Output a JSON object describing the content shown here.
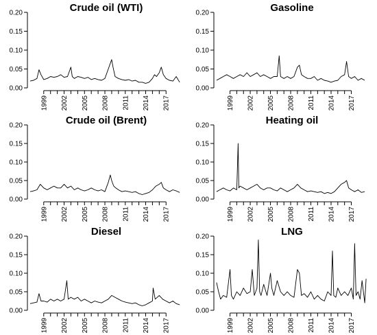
{
  "figure": {
    "panels": [
      {
        "title": "Crude oil (WTI)"
      },
      {
        "title": "Gasoline"
      },
      {
        "title": "Crude oil (Brent)"
      },
      {
        "title": "Heating oil"
      },
      {
        "title": "Diesel"
      },
      {
        "title": "LNG"
      }
    ]
  },
  "chart_data": [
    {
      "type": "line",
      "title": "Crude oil (WTI)",
      "xlabel": "",
      "ylabel": "",
      "xlim": [
        1996.6,
        2019.8
      ],
      "ylim": [
        0,
        0.2
      ],
      "xticks": [
        1999,
        2002,
        2005,
        2008,
        2011,
        2014,
        2017
      ],
      "yticks": [
        0.0,
        0.05,
        0.1,
        0.15,
        0.2
      ],
      "ytick_labels": [
        "0.00",
        "0.05",
        "0.10",
        "0.15",
        "0.20"
      ],
      "series": [
        {
          "x": [
            1997.0,
            1997.5,
            1998.0,
            1998.3,
            1998.6,
            1999.0,
            1999.5,
            2000.0,
            2000.5,
            2001.0,
            2001.5,
            2002.0,
            2002.5,
            2003.0,
            2003.2,
            2003.5,
            2004.0,
            2004.5,
            2005.0,
            2005.5,
            2006.0,
            2006.5,
            2007.0,
            2007.5,
            2008.0,
            2008.5,
            2008.8,
            2009.0,
            2009.2,
            2009.5,
            2010.0,
            2010.5,
            2011.0,
            2011.5,
            2012.0,
            2012.5,
            2013.0,
            2013.5,
            2014.0,
            2014.5,
            2015.0,
            2015.3,
            2015.6,
            2016.0,
            2016.3,
            2016.6,
            2017.0,
            2017.5,
            2018.0,
            2018.5,
            2019.0
          ],
          "y": [
            0.018,
            0.02,
            0.025,
            0.048,
            0.035,
            0.022,
            0.025,
            0.03,
            0.028,
            0.03,
            0.035,
            0.028,
            0.03,
            0.055,
            0.03,
            0.025,
            0.03,
            0.028,
            0.025,
            0.028,
            0.022,
            0.025,
            0.022,
            0.02,
            0.025,
            0.05,
            0.065,
            0.075,
            0.055,
            0.03,
            0.025,
            0.022,
            0.02,
            0.022,
            0.018,
            0.02,
            0.015,
            0.015,
            0.012,
            0.015,
            0.025,
            0.035,
            0.03,
            0.04,
            0.055,
            0.035,
            0.025,
            0.02,
            0.018,
            0.03,
            0.015
          ]
        }
      ]
    },
    {
      "type": "line",
      "title": "Gasoline",
      "xlabel": "",
      "ylabel": "",
      "xlim": [
        1996.6,
        2019.8
      ],
      "ylim": [
        0,
        0.2
      ],
      "xticks": [
        1999,
        2002,
        2005,
        2008,
        2011,
        2014,
        2017
      ],
      "yticks": [
        0.0,
        0.05,
        0.1,
        0.15,
        0.2
      ],
      "ytick_labels": [
        "0.00",
        "0.05",
        "0.10",
        "0.15",
        "0.20"
      ],
      "series": [
        {
          "x": [
            1997.0,
            1997.5,
            1998.0,
            1998.5,
            1999.0,
            1999.5,
            2000.0,
            2000.5,
            2001.0,
            2001.5,
            2002.0,
            2002.5,
            2003.0,
            2003.5,
            2004.0,
            2004.5,
            2005.0,
            2005.5,
            2006.0,
            2006.3,
            2006.5,
            2007.0,
            2007.5,
            2008.0,
            2008.5,
            2009.0,
            2009.3,
            2009.6,
            2010.0,
            2010.5,
            2011.0,
            2011.5,
            2012.0,
            2012.5,
            2013.0,
            2013.5,
            2014.0,
            2014.5,
            2015.0,
            2015.5,
            2016.0,
            2016.3,
            2016.6,
            2017.0,
            2017.5,
            2018.0,
            2018.5,
            2019.0
          ],
          "y": [
            0.02,
            0.025,
            0.03,
            0.035,
            0.03,
            0.025,
            0.03,
            0.035,
            0.03,
            0.04,
            0.03,
            0.035,
            0.04,
            0.03,
            0.035,
            0.03,
            0.025,
            0.03,
            0.03,
            0.085,
            0.03,
            0.025,
            0.03,
            0.025,
            0.03,
            0.055,
            0.06,
            0.035,
            0.03,
            0.025,
            0.025,
            0.03,
            0.02,
            0.025,
            0.02,
            0.018,
            0.015,
            0.018,
            0.02,
            0.03,
            0.035,
            0.07,
            0.03,
            0.025,
            0.03,
            0.02,
            0.025,
            0.02
          ]
        }
      ]
    },
    {
      "type": "line",
      "title": "Crude oil (Brent)",
      "xlabel": "",
      "ylabel": "",
      "xlim": [
        1996.6,
        2019.8
      ],
      "ylim": [
        0,
        0.2
      ],
      "xticks": [
        1999,
        2002,
        2005,
        2008,
        2011,
        2014,
        2017
      ],
      "yticks": [
        0.0,
        0.05,
        0.1,
        0.15,
        0.2
      ],
      "ytick_labels": [
        "0.00",
        "0.05",
        "0.10",
        "0.15",
        "0.20"
      ],
      "series": [
        {
          "x": [
            1997.0,
            1997.5,
            1998.0,
            1998.5,
            1999.0,
            1999.5,
            2000.0,
            2000.5,
            2001.0,
            2001.5,
            2002.0,
            2002.5,
            2003.0,
            2003.5,
            2004.0,
            2004.5,
            2005.0,
            2005.5,
            2006.0,
            2006.5,
            2007.0,
            2007.5,
            2008.0,
            2008.5,
            2008.8,
            2009.0,
            2009.3,
            2009.6,
            2010.0,
            2010.5,
            2011.0,
            2011.5,
            2012.0,
            2012.5,
            2013.0,
            2013.5,
            2014.0,
            2014.5,
            2015.0,
            2015.5,
            2016.0,
            2016.3,
            2016.6,
            2017.0,
            2017.5,
            2018.0,
            2018.5,
            2019.0
          ],
          "y": [
            0.02,
            0.022,
            0.025,
            0.04,
            0.03,
            0.025,
            0.03,
            0.035,
            0.03,
            0.03,
            0.04,
            0.03,
            0.035,
            0.025,
            0.03,
            0.025,
            0.022,
            0.025,
            0.03,
            0.025,
            0.022,
            0.025,
            0.02,
            0.045,
            0.065,
            0.05,
            0.035,
            0.03,
            0.025,
            0.02,
            0.022,
            0.02,
            0.018,
            0.02,
            0.015,
            0.012,
            0.015,
            0.018,
            0.025,
            0.035,
            0.04,
            0.045,
            0.03,
            0.025,
            0.02,
            0.025,
            0.022,
            0.018
          ]
        }
      ]
    },
    {
      "type": "line",
      "title": "Heating oil",
      "xlabel": "",
      "ylabel": "",
      "xlim": [
        1996.6,
        2019.8
      ],
      "ylim": [
        0,
        0.2
      ],
      "xticks": [
        1999,
        2002,
        2005,
        2008,
        2011,
        2014,
        2017
      ],
      "yticks": [
        0.0,
        0.05,
        0.1,
        0.15,
        0.2
      ],
      "ytick_labels": [
        "0.00",
        "0.05",
        "0.10",
        "0.15",
        "0.20"
      ],
      "series": [
        {
          "x": [
            1997.0,
            1997.5,
            1998.0,
            1998.5,
            1999.0,
            1999.5,
            2000.0,
            2000.2,
            2000.3,
            2000.5,
            2001.0,
            2001.5,
            2002.0,
            2002.5,
            2003.0,
            2003.5,
            2004.0,
            2004.5,
            2005.0,
            2005.5,
            2006.0,
            2006.5,
            2007.0,
            2007.5,
            2008.0,
            2008.5,
            2009.0,
            2009.5,
            2010.0,
            2010.5,
            2011.0,
            2011.5,
            2012.0,
            2012.5,
            2013.0,
            2013.5,
            2014.0,
            2014.5,
            2015.0,
            2015.5,
            2016.0,
            2016.3,
            2016.6,
            2017.0,
            2017.5,
            2018.0,
            2018.5,
            2019.0
          ],
          "y": [
            0.02,
            0.025,
            0.03,
            0.025,
            0.022,
            0.03,
            0.025,
            0.15,
            0.03,
            0.035,
            0.03,
            0.025,
            0.03,
            0.035,
            0.04,
            0.03,
            0.025,
            0.03,
            0.03,
            0.025,
            0.022,
            0.03,
            0.025,
            0.02,
            0.025,
            0.03,
            0.04,
            0.03,
            0.025,
            0.02,
            0.022,
            0.02,
            0.018,
            0.02,
            0.015,
            0.018,
            0.015,
            0.02,
            0.03,
            0.04,
            0.045,
            0.05,
            0.03,
            0.025,
            0.02,
            0.025,
            0.018,
            0.02
          ]
        }
      ]
    },
    {
      "type": "line",
      "title": "Diesel",
      "xlabel": "",
      "ylabel": "",
      "xlim": [
        1996.6,
        2019.8
      ],
      "ylim": [
        0,
        0.2
      ],
      "xticks": [
        1999,
        2002,
        2005,
        2008,
        2011,
        2014,
        2017
      ],
      "yticks": [
        0.0,
        0.05,
        0.1,
        0.15,
        0.2
      ],
      "ytick_labels": [
        "0.00",
        "0.05",
        "0.10",
        "0.15",
        "0.20"
      ],
      "series": [
        {
          "x": [
            1997.0,
            1997.5,
            1998.0,
            1998.3,
            1998.6,
            1999.0,
            1999.5,
            2000.0,
            2000.5,
            2001.0,
            2001.5,
            2002.0,
            2002.4,
            2002.6,
            2003.0,
            2003.5,
            2004.0,
            2004.5,
            2005.0,
            2005.5,
            2006.0,
            2006.5,
            2007.0,
            2007.5,
            2008.0,
            2008.5,
            2009.0,
            2009.5,
            2010.0,
            2010.5,
            2011.0,
            2011.5,
            2012.0,
            2012.5,
            2013.0,
            2013.5,
            2014.0,
            2014.5,
            2015.0,
            2015.1,
            2015.4,
            2016.0,
            2016.5,
            2017.0,
            2017.5,
            2018.0,
            2018.5,
            2019.0
          ],
          "y": [
            0.018,
            0.02,
            0.022,
            0.045,
            0.025,
            0.025,
            0.022,
            0.03,
            0.025,
            0.03,
            0.025,
            0.03,
            0.08,
            0.03,
            0.035,
            0.03,
            0.035,
            0.025,
            0.03,
            0.025,
            0.02,
            0.025,
            0.022,
            0.02,
            0.025,
            0.03,
            0.04,
            0.035,
            0.03,
            0.025,
            0.022,
            0.02,
            0.018,
            0.02,
            0.015,
            0.012,
            0.015,
            0.02,
            0.025,
            0.06,
            0.03,
            0.04,
            0.03,
            0.025,
            0.02,
            0.025,
            0.018,
            0.015
          ]
        }
      ]
    },
    {
      "type": "line",
      "title": "LNG",
      "xlabel": "",
      "ylabel": "",
      "xlim": [
        1996.6,
        2019.8
      ],
      "ylim": [
        0,
        0.2
      ],
      "xticks": [
        1999,
        2002,
        2005,
        2008,
        2011,
        2014,
        2017
      ],
      "yticks": [
        0.0,
        0.05,
        0.1,
        0.15,
        0.2
      ],
      "ytick_labels": [
        "0.00",
        "0.05",
        "0.10",
        "0.15",
        "0.20"
      ],
      "series": [
        {
          "x": [
            1997.0,
            1997.3,
            1997.6,
            1998.0,
            1998.5,
            1999.0,
            1999.2,
            1999.5,
            2000.0,
            2000.5,
            2001.0,
            2001.5,
            2002.0,
            2002.3,
            2002.6,
            2003.0,
            2003.2,
            2003.4,
            2003.6,
            2004.0,
            2004.5,
            2005.0,
            2005.2,
            2005.5,
            2006.0,
            2006.5,
            2007.0,
            2007.5,
            2008.0,
            2008.5,
            2009.0,
            2009.3,
            2009.6,
            2010.0,
            2010.5,
            2011.0,
            2011.5,
            2012.0,
            2012.5,
            2013.0,
            2013.5,
            2014.0,
            2014.2,
            2014.4,
            2014.7,
            2015.0,
            2015.5,
            2016.0,
            2016.5,
            2017.0,
            2017.3,
            2017.5,
            2017.7,
            2018.0,
            2018.3,
            2018.6,
            2019.0,
            2019.2
          ],
          "y": [
            0.075,
            0.05,
            0.03,
            0.04,
            0.035,
            0.11,
            0.04,
            0.03,
            0.05,
            0.04,
            0.06,
            0.045,
            0.05,
            0.11,
            0.04,
            0.06,
            0.19,
            0.05,
            0.04,
            0.07,
            0.04,
            0.1,
            0.06,
            0.04,
            0.08,
            0.05,
            0.04,
            0.05,
            0.04,
            0.035,
            0.11,
            0.1,
            0.04,
            0.045,
            0.035,
            0.05,
            0.03,
            0.04,
            0.03,
            0.025,
            0.05,
            0.04,
            0.16,
            0.04,
            0.035,
            0.06,
            0.04,
            0.05,
            0.04,
            0.06,
            0.03,
            0.18,
            0.04,
            0.05,
            0.03,
            0.08,
            0.02,
            0.085
          ]
        }
      ]
    }
  ]
}
